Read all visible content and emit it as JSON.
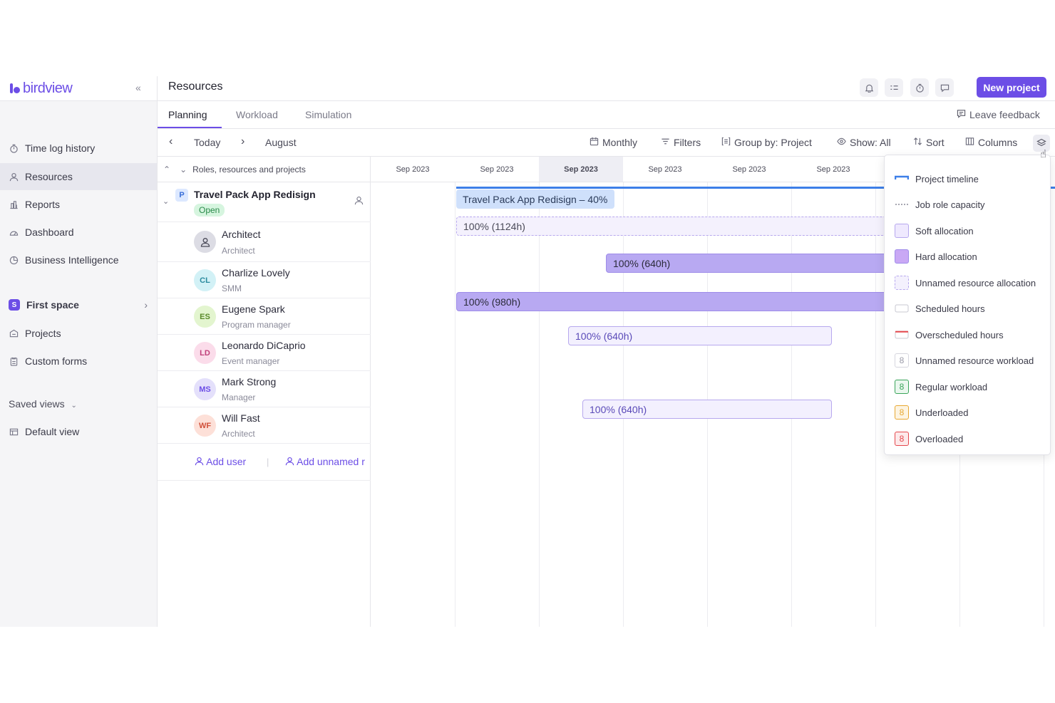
{
  "brand": {
    "name": "birdview"
  },
  "sidebar": {
    "items": [
      {
        "label": "Time log history",
        "icon": "timer-icon"
      },
      {
        "label": "Resources",
        "icon": "user-icon"
      },
      {
        "label": "Reports",
        "icon": "report-icon"
      },
      {
        "label": "Dashboard",
        "icon": "gauge-icon"
      },
      {
        "label": "Business Intelligence",
        "icon": "pie-icon"
      }
    ],
    "space": {
      "badge": "S",
      "label": "First space"
    },
    "space_items": [
      {
        "label": "Projects",
        "icon": "projects-icon"
      },
      {
        "label": "Custom forms",
        "icon": "form-icon"
      }
    ],
    "saved_views_label": "Saved views",
    "default_view_label": "Default view"
  },
  "header": {
    "title": "Resources",
    "new_project_label": "New project"
  },
  "tabs": {
    "items": [
      "Planning",
      "Workload",
      "Simulation"
    ],
    "active": "Planning",
    "feedback_label": "Leave feedback"
  },
  "toolbar": {
    "today_label": "Today",
    "month_label": "August",
    "monthly_label": "Monthly",
    "filters_label": "Filters",
    "group_by_label": "Group by: Project",
    "show_label": "Show: All",
    "sort_label": "Sort",
    "columns_label": "Columns"
  },
  "table": {
    "column_header": "Roles, resources and projects",
    "project": {
      "badge": "P",
      "name": "Travel Pack App Redisign",
      "status": "Open"
    },
    "people": [
      {
        "initials": "",
        "name": "Architect",
        "role": "Architect",
        "color": "#dcdce4",
        "text_color": "#4a4a58"
      },
      {
        "initials": "CL",
        "name": "Charlize Lovely",
        "role": "SMM",
        "color": "#d2f1f6",
        "text_color": "#2a8a9e"
      },
      {
        "initials": "ES",
        "name": "Eugene Spark",
        "role": "Program manager",
        "color": "#e3f5cf",
        "text_color": "#5a8a2a"
      },
      {
        "initials": "LD",
        "name": "Leonardo DiCaprio",
        "role": "Event manager",
        "color": "#fbdcea",
        "text_color": "#c0407a"
      },
      {
        "initials": "MS",
        "name": "Mark Strong",
        "role": "Manager",
        "color": "#e4e0fb",
        "text_color": "#6c4ee6"
      },
      {
        "initials": "WF",
        "name": "Will Fast",
        "role": "Architect",
        "color": "#fde0d8",
        "text_color": "#d0503a"
      }
    ],
    "add_user_label": "Add user",
    "add_unnamed_label": "Add unnamed r"
  },
  "timeline": {
    "months": [
      "Sep 2023",
      "Sep 2023",
      "Sep 2023",
      "Sep 2023",
      "Sep 2023",
      "Sep 2023"
    ],
    "current_index": 2,
    "bars": {
      "project": "Travel Pack App Redisign – 40%",
      "unnamed": "100% (1124h)",
      "charlize": "100% (640h)",
      "eugene": "100% (980h)",
      "leonardo": "100% (640h)",
      "will": "100% (640h)"
    }
  },
  "legend": {
    "items": [
      "Project timeline",
      "Job role capacity",
      "Soft allocation",
      "Hard allocation",
      "Unnamed resource allocation",
      "Scheduled hours",
      "Overscheduled hours",
      "Unnamed resource workload",
      "Regular workload",
      "Underloaded",
      "Overloaded"
    ],
    "workload_digit": "8"
  },
  "colors": {
    "accent": "#6c4ee6",
    "project_line": "#3d7fe8",
    "overloaded": "#e5484d",
    "regular": "#3aa55a",
    "underloaded": "#e8a832"
  }
}
